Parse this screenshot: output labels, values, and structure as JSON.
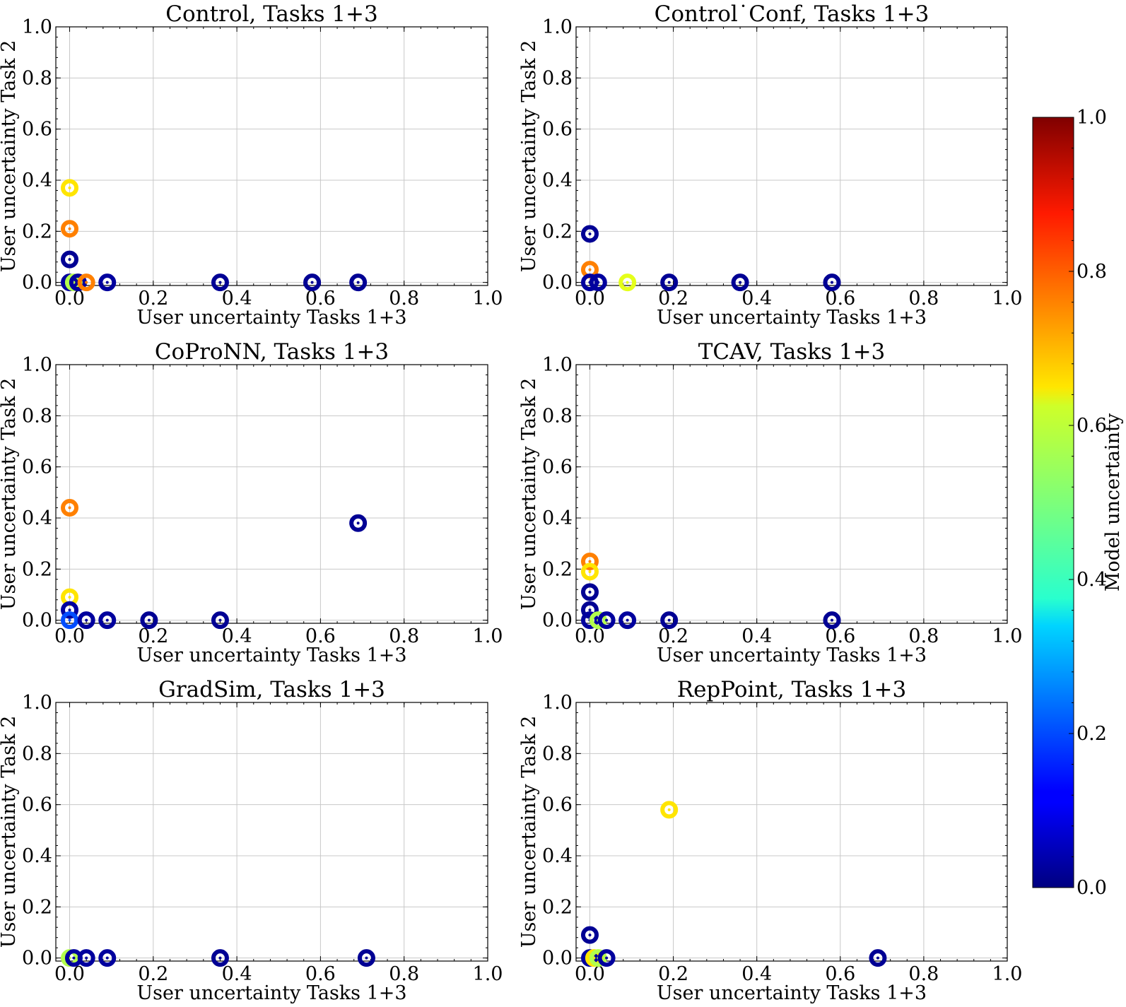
{
  "colorbar": {
    "label": "Model uncertainty",
    "range": [
      0,
      1
    ],
    "ticks": [
      "0.0",
      "0.2",
      "0.4",
      "0.6",
      "0.8",
      "1.0"
    ],
    "colormap": "jet"
  },
  "chart_data": [
    {
      "type": "scatter",
      "title": "Control, Tasks 1+3",
      "xlabel": "User uncertainty Tasks 1+3",
      "ylabel": "User uncertainty Task 2",
      "xlim": [
        0,
        1
      ],
      "ylim": [
        0,
        1
      ],
      "xticks": [
        "0.0",
        "0.2",
        "0.4",
        "0.6",
        "0.8",
        "1.0"
      ],
      "yticks": [
        "0.0",
        "0.2",
        "0.4",
        "0.6",
        "0.8",
        "1.0"
      ],
      "grid": true,
      "points": [
        {
          "x": 0.0,
          "y": 0.37,
          "c": 0.65
        },
        {
          "x": 0.0,
          "y": 0.21,
          "c": 0.75
        },
        {
          "x": 0.0,
          "y": 0.09,
          "c": 0.02
        },
        {
          "x": 0.0,
          "y": 0.0,
          "c": 0.03
        },
        {
          "x": 0.01,
          "y": 0.0,
          "c": 0.55
        },
        {
          "x": 0.02,
          "y": 0.0,
          "c": 0.03
        },
        {
          "x": 0.04,
          "y": 0.0,
          "c": 0.75
        },
        {
          "x": 0.09,
          "y": 0.0,
          "c": 0.03
        },
        {
          "x": 0.36,
          "y": 0.0,
          "c": 0.02
        },
        {
          "x": 0.58,
          "y": 0.0,
          "c": 0.02
        },
        {
          "x": 0.69,
          "y": 0.0,
          "c": 0.02
        }
      ]
    },
    {
      "type": "scatter",
      "title": "Control˙Conf, Tasks 1+3",
      "xlabel": "User uncertainty Tasks 1+3",
      "ylabel": "User uncertainty Task 2",
      "xlim": [
        0,
        1
      ],
      "ylim": [
        0,
        1
      ],
      "xticks": [
        "0.0",
        "0.2",
        "0.4",
        "0.6",
        "0.8",
        "1.0"
      ],
      "yticks": [
        "0.0",
        "0.2",
        "0.4",
        "0.6",
        "0.8",
        "1.0"
      ],
      "grid": true,
      "points": [
        {
          "x": 0.0,
          "y": 0.19,
          "c": 0.02
        },
        {
          "x": 0.0,
          "y": 0.05,
          "c": 0.75
        },
        {
          "x": 0.0,
          "y": 0.0,
          "c": 0.03
        },
        {
          "x": 0.02,
          "y": 0.0,
          "c": 0.03
        },
        {
          "x": 0.09,
          "y": 0.0,
          "c": 0.6
        },
        {
          "x": 0.19,
          "y": 0.0,
          "c": 0.02
        },
        {
          "x": 0.36,
          "y": 0.0,
          "c": 0.02
        },
        {
          "x": 0.58,
          "y": 0.0,
          "c": 0.02
        }
      ]
    },
    {
      "type": "scatter",
      "title": "CoProNN, Tasks 1+3",
      "xlabel": "User uncertainty Tasks 1+3",
      "ylabel": "User uncertainty Task 2",
      "xlim": [
        0,
        1
      ],
      "ylim": [
        0,
        1
      ],
      "xticks": [
        "0.0",
        "0.2",
        "0.4",
        "0.6",
        "0.8",
        "1.0"
      ],
      "yticks": [
        "0.0",
        "0.2",
        "0.4",
        "0.6",
        "0.8",
        "1.0"
      ],
      "grid": true,
      "points": [
        {
          "x": 0.0,
          "y": 0.44,
          "c": 0.75
        },
        {
          "x": 0.0,
          "y": 0.09,
          "c": 0.65
        },
        {
          "x": 0.0,
          "y": 0.04,
          "c": 0.03
        },
        {
          "x": 0.0,
          "y": 0.0,
          "c": 0.2
        },
        {
          "x": 0.04,
          "y": 0.0,
          "c": 0.03
        },
        {
          "x": 0.09,
          "y": 0.0,
          "c": 0.03
        },
        {
          "x": 0.19,
          "y": 0.0,
          "c": 0.02
        },
        {
          "x": 0.36,
          "y": 0.0,
          "c": 0.02
        },
        {
          "x": 0.69,
          "y": 0.38,
          "c": 0.02
        }
      ]
    },
    {
      "type": "scatter",
      "title": "TCAV, Tasks 1+3",
      "xlabel": "User uncertainty Tasks 1+3",
      "ylabel": "User uncertainty Task 2",
      "xlim": [
        0,
        1
      ],
      "ylim": [
        0,
        1
      ],
      "xticks": [
        "0.0",
        "0.2",
        "0.4",
        "0.6",
        "0.8",
        "1.0"
      ],
      "yticks": [
        "0.0",
        "0.2",
        "0.4",
        "0.6",
        "0.8",
        "1.0"
      ],
      "grid": true,
      "points": [
        {
          "x": 0.0,
          "y": 0.23,
          "c": 0.75
        },
        {
          "x": 0.0,
          "y": 0.19,
          "c": 0.65
        },
        {
          "x": 0.0,
          "y": 0.11,
          "c": 0.02
        },
        {
          "x": 0.0,
          "y": 0.04,
          "c": 0.02
        },
        {
          "x": 0.0,
          "y": 0.0,
          "c": 0.03
        },
        {
          "x": 0.02,
          "y": 0.0,
          "c": 0.55
        },
        {
          "x": 0.04,
          "y": 0.0,
          "c": 0.03
        },
        {
          "x": 0.09,
          "y": 0.0,
          "c": 0.03
        },
        {
          "x": 0.19,
          "y": 0.0,
          "c": 0.02
        },
        {
          "x": 0.58,
          "y": 0.0,
          "c": 0.02
        }
      ]
    },
    {
      "type": "scatter",
      "title": "GradSim, Tasks 1+3",
      "xlabel": "User uncertainty Tasks 1+3",
      "ylabel": "User uncertainty Task 2",
      "xlim": [
        0,
        1
      ],
      "ylim": [
        0,
        1
      ],
      "xticks": [
        "0.0",
        "0.2",
        "0.4",
        "0.6",
        "0.8",
        "1.0"
      ],
      "yticks": [
        "0.0",
        "0.2",
        "0.4",
        "0.6",
        "0.8",
        "1.0"
      ],
      "grid": true,
      "points": [
        {
          "x": 0.0,
          "y": 0.0,
          "c": 0.55
        },
        {
          "x": 0.01,
          "y": 0.0,
          "c": 0.03
        },
        {
          "x": 0.04,
          "y": 0.0,
          "c": 0.03
        },
        {
          "x": 0.09,
          "y": 0.0,
          "c": 0.03
        },
        {
          "x": 0.36,
          "y": 0.0,
          "c": 0.02
        },
        {
          "x": 0.71,
          "y": 0.0,
          "c": 0.02
        }
      ]
    },
    {
      "type": "scatter",
      "title": "RepPoint, Tasks 1+3",
      "xlabel": "User uncertainty Tasks 1+3",
      "ylabel": "User uncertainty Task 2",
      "xlim": [
        0,
        1
      ],
      "ylim": [
        0,
        1
      ],
      "xticks": [
        "0.0",
        "0.2",
        "0.4",
        "0.6",
        "0.8",
        "1.0"
      ],
      "yticks": [
        "0.0",
        "0.2",
        "0.4",
        "0.6",
        "0.8",
        "1.0"
      ],
      "grid": true,
      "points": [
        {
          "x": 0.19,
          "y": 0.58,
          "c": 0.65
        },
        {
          "x": 0.0,
          "y": 0.09,
          "c": 0.02
        },
        {
          "x": 0.0,
          "y": 0.0,
          "c": 0.03
        },
        {
          "x": 0.01,
          "y": 0.0,
          "c": 0.65
        },
        {
          "x": 0.02,
          "y": 0.0,
          "c": 0.55
        },
        {
          "x": 0.04,
          "y": 0.0,
          "c": 0.03
        },
        {
          "x": 0.69,
          "y": 0.0,
          "c": 0.02
        }
      ]
    }
  ]
}
